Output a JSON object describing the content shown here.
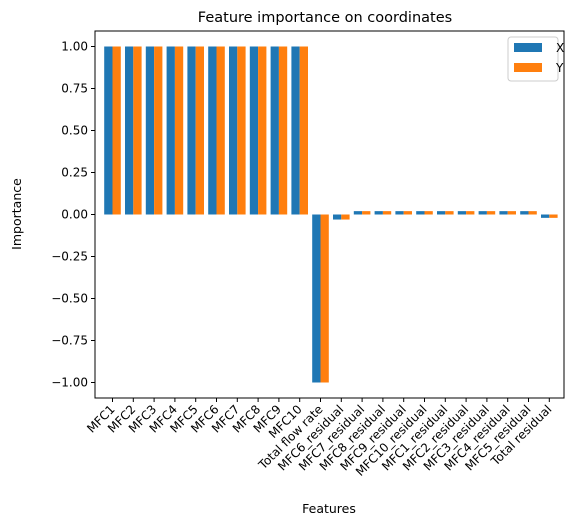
{
  "chart_data": {
    "type": "bar",
    "title": "Feature importance on coordinates",
    "xlabel": "Features",
    "ylabel": "Importance",
    "ylim": [
      -1.1,
      1.1
    ],
    "yticks": [
      -1.0,
      -0.75,
      -0.5,
      -0.25,
      0.0,
      0.25,
      0.5,
      0.75,
      1.0
    ],
    "ytick_labels": [
      "−1.00",
      "−0.75",
      "−0.50",
      "−0.25",
      "0.00",
      "0.25",
      "0.50",
      "0.75",
      "1.00"
    ],
    "grid": false,
    "legend_position": "top-right",
    "categories": [
      "MFC1",
      "MFC2",
      "MFC3",
      "MFC4",
      "MFC5",
      "MFC6",
      "MFC7",
      "MFC8",
      "MFC9",
      "MFC10",
      "Total flow rate",
      "MFC6_residual",
      "MFC7_residual",
      "MFC8_residual",
      "MFC9_residual",
      "MFC10_residual",
      "MFC1_residual",
      "MFC2_residual",
      "MFC3_residual",
      "MFC4_residual",
      "MFC5_residual",
      "Total residual"
    ],
    "series": [
      {
        "name": "X",
        "color": "#1f77b4",
        "values": [
          1.0,
          1.0,
          1.0,
          1.0,
          1.0,
          1.0,
          1.0,
          1.0,
          1.0,
          1.0,
          -1.0,
          -0.03,
          0.02,
          0.02,
          0.02,
          0.02,
          0.02,
          0.02,
          0.02,
          0.02,
          0.02,
          -0.02
        ]
      },
      {
        "name": "Y",
        "color": "#ff7f0e",
        "values": [
          1.0,
          1.0,
          1.0,
          1.0,
          1.0,
          1.0,
          1.0,
          1.0,
          1.0,
          1.0,
          -1.0,
          -0.03,
          0.02,
          0.02,
          0.02,
          0.02,
          0.02,
          0.02,
          0.02,
          0.02,
          0.02,
          -0.02
        ]
      }
    ]
  }
}
